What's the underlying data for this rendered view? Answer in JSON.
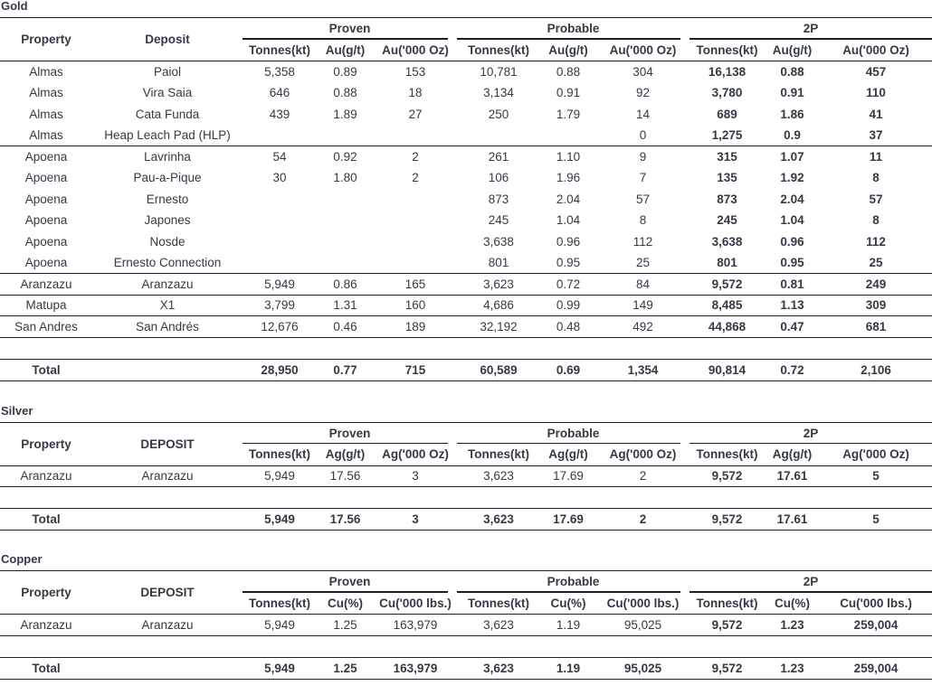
{
  "gold": {
    "title": "Gold",
    "headers": {
      "property": "Property",
      "deposit": "Deposit",
      "groups": [
        "Proven",
        "Probable",
        "2P"
      ],
      "sub": [
        "Tonnes(kt)",
        "Au(g/t)",
        "Au('000 Oz)"
      ]
    },
    "rows": [
      {
        "property": "Almas",
        "deposit": "Paiol",
        "v": [
          "5,358",
          "0.89",
          "153",
          "10,781",
          "0.88",
          "304",
          "16,138",
          "0.88",
          "457"
        ]
      },
      {
        "property": "Almas",
        "deposit": "Vira Saia",
        "v": [
          "646",
          "0.88",
          "18",
          "3,134",
          "0.91",
          "92",
          "3,780",
          "0.91",
          "110"
        ]
      },
      {
        "property": "Almas",
        "deposit": "Cata Funda",
        "v": [
          "439",
          "1.89",
          "27",
          "250",
          "1.79",
          "14",
          "689",
          "1.86",
          "41"
        ]
      },
      {
        "property": "Almas",
        "deposit": "Heap Leach Pad (HLP)",
        "v": [
          "",
          "",
          "",
          "",
          "",
          "0",
          "1,275",
          "0.9",
          "37"
        ]
      },
      {
        "property": "Apoena",
        "deposit": "Lavrinha",
        "v": [
          "54",
          "0.92",
          "2",
          "261",
          "1.10",
          "9",
          "315",
          "1.07",
          "11"
        ]
      },
      {
        "property": "Apoena",
        "deposit": "Pau-a-Pique",
        "v": [
          "30",
          "1.80",
          "2",
          "106",
          "1.96",
          "7",
          "135",
          "1.92",
          "8"
        ]
      },
      {
        "property": "Apoena",
        "deposit": "Ernesto",
        "v": [
          "",
          "",
          "",
          "873",
          "2.04",
          "57",
          "873",
          "2.04",
          "57"
        ]
      },
      {
        "property": "Apoena",
        "deposit": "Japones",
        "v": [
          "",
          "",
          "",
          "245",
          "1.04",
          "8",
          "245",
          "1.04",
          "8"
        ]
      },
      {
        "property": "Apoena",
        "deposit": "Nosde",
        "v": [
          "",
          "",
          "",
          "3,638",
          "0.96",
          "112",
          "3,638",
          "0.96",
          "112"
        ]
      },
      {
        "property": "Apoena",
        "deposit": "Ernesto Connection",
        "v": [
          "",
          "",
          "",
          "801",
          "0.95",
          "25",
          "801",
          "0.95",
          "25"
        ]
      },
      {
        "property": "Aranzazu",
        "deposit": "Aranzazu",
        "v": [
          "5,949",
          "0.86",
          "165",
          "3,623",
          "0.72",
          "84",
          "9,572",
          "0.81",
          "249"
        ]
      },
      {
        "property": "Matupa",
        "deposit": "X1",
        "v": [
          "3,799",
          "1.31",
          "160",
          "4,686",
          "0.99",
          "149",
          "8,485",
          "1.13",
          "309"
        ]
      },
      {
        "property": "San Andres",
        "deposit": "San Andrés",
        "v": [
          "12,676",
          "0.46",
          "189",
          "32,192",
          "0.48",
          "492",
          "44,868",
          "0.47",
          "681"
        ]
      }
    ],
    "total": {
      "label": "Total",
      "v": [
        "28,950",
        "0.77",
        "715",
        "60,589",
        "0.69",
        "1,354",
        "90,814",
        "0.72",
        "2,106"
      ]
    }
  },
  "silver": {
    "title": "Silver",
    "headers": {
      "property": "Property",
      "deposit": "DEPOSIT",
      "groups": [
        "Proven",
        "Probable",
        "2P"
      ],
      "sub": [
        "Tonnes(kt)",
        "Ag(g/t)",
        "Ag('000 Oz)"
      ]
    },
    "rows": [
      {
        "property": "Aranzazu",
        "deposit": "Aranzazu",
        "v": [
          "5,949",
          "17.56",
          "3",
          "3,623",
          "17.69",
          "2",
          "9,572",
          "17.61",
          "5"
        ]
      }
    ],
    "total": {
      "label": "Total",
      "v": [
        "5,949",
        "17.56",
        "3",
        "3,623",
        "17.69",
        "2",
        "9,572",
        "17.61",
        "5"
      ]
    }
  },
  "copper": {
    "title": "Copper",
    "headers": {
      "property": "Property",
      "deposit": "DEPOSIT",
      "groups": [
        "Proven",
        "Probable",
        "2P"
      ],
      "sub": [
        "Tonnes(kt)",
        "Cu(%)",
        "Cu('000 lbs.)"
      ]
    },
    "rows": [
      {
        "property": "Aranzazu",
        "deposit": "Aranzazu",
        "v": [
          "5,949",
          "1.25",
          "163,979",
          "3,623",
          "1.19",
          "95,025",
          "9,572",
          "1.23",
          "259,004"
        ]
      }
    ],
    "total": {
      "label": "Total",
      "v": [
        "5,949",
        "1.25",
        "163,979",
        "3,623",
        "1.19",
        "95,025",
        "9,572",
        "1.23",
        "259,004"
      ]
    }
  }
}
